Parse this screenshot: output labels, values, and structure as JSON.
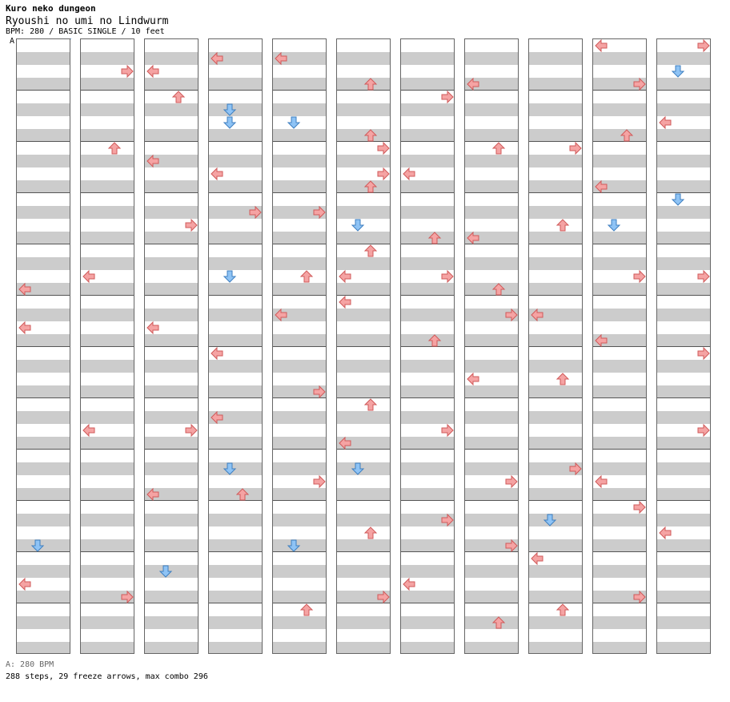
{
  "header": {
    "pack": "Kuro neko dungeon",
    "title": "Ryoushi no umi no Lindwurm",
    "info": "BPM: 280 / BASIC SINGLE / 10 feet",
    "marker": "A"
  },
  "footer": {
    "bpm": "A: 280 BPM",
    "stats": "288 steps, 29 freeze arrows, max combo 296"
  },
  "colors": {
    "left": "#f5a3a3",
    "up": "#f5a3a3",
    "down": "#8ec3f5",
    "right": "#f5a3a3",
    "freeze": "#c8f5c0"
  },
  "chart_data": {
    "type": "step-chart",
    "bpm": 280,
    "difficulty": "BASIC SINGLE",
    "rating": "10 feet",
    "columns": 11,
    "beats_per_column": 48,
    "steps": 288,
    "freeze_arrows": 29,
    "max_combo": 296,
    "notes": [
      [
        [
          19,
          "L"
        ],
        [
          22,
          "L"
        ],
        [
          39,
          "D"
        ],
        [
          42,
          "L"
        ]
      ],
      [
        [
          2,
          "R"
        ],
        [
          8,
          "U"
        ],
        [
          18,
          "L"
        ],
        [
          30,
          "L"
        ],
        [
          43,
          "R"
        ]
      ],
      [
        [
          2,
          "L"
        ],
        [
          4,
          "U"
        ],
        [
          9,
          "L"
        ],
        [
          14,
          "R"
        ],
        [
          22,
          "L"
        ],
        [
          30,
          "R"
        ],
        [
          35,
          "L"
        ],
        [
          41,
          "D"
        ]
      ],
      [
        [
          1,
          "L"
        ],
        [
          5,
          "D"
        ],
        [
          6,
          "D"
        ],
        [
          10,
          "L"
        ],
        [
          13,
          "R"
        ],
        [
          18,
          "D"
        ],
        [
          24,
          "L"
        ],
        [
          29,
          "L"
        ],
        [
          33,
          "D"
        ],
        [
          35,
          "U"
        ]
      ],
      [
        [
          1,
          "L"
        ],
        [
          6,
          "D"
        ],
        [
          13,
          "R"
        ],
        [
          18,
          "U"
        ],
        [
          21,
          "L"
        ],
        [
          27,
          "R"
        ],
        [
          34,
          "R"
        ],
        [
          39,
          "D"
        ],
        [
          44,
          "U"
        ]
      ],
      [
        [
          3,
          "U"
        ],
        [
          7,
          "U"
        ],
        [
          8,
          "R"
        ],
        [
          10,
          "R"
        ],
        [
          11,
          "U"
        ],
        [
          14,
          "D"
        ],
        [
          16,
          "U"
        ],
        [
          18,
          "L"
        ],
        [
          20,
          "L"
        ],
        [
          28,
          "U"
        ],
        [
          31,
          "L"
        ],
        [
          33,
          "D"
        ],
        [
          38,
          "U"
        ],
        [
          43,
          "R"
        ]
      ],
      [
        [
          4,
          "R"
        ],
        [
          10,
          "L"
        ],
        [
          15,
          "U"
        ],
        [
          18,
          "R"
        ],
        [
          23,
          "U"
        ],
        [
          30,
          "R"
        ],
        [
          37,
          "R"
        ],
        [
          42,
          "L"
        ]
      ],
      [
        [
          3,
          "L"
        ],
        [
          8,
          "U"
        ],
        [
          15,
          "L"
        ],
        [
          19,
          "U"
        ],
        [
          21,
          "R"
        ],
        [
          26,
          "L"
        ],
        [
          34,
          "R"
        ],
        [
          39,
          "R"
        ],
        [
          45,
          "U"
        ]
      ],
      [
        [
          8,
          "R"
        ],
        [
          14,
          "U"
        ],
        [
          21,
          "L"
        ],
        [
          26,
          "U"
        ],
        [
          33,
          "R"
        ],
        [
          37,
          "D"
        ],
        [
          40,
          "L"
        ],
        [
          44,
          "U"
        ]
      ],
      [
        [
          0,
          "L"
        ],
        [
          3,
          "R"
        ],
        [
          7,
          "U"
        ],
        [
          11,
          "L"
        ],
        [
          14,
          "D"
        ],
        [
          18,
          "R"
        ],
        [
          23,
          "L"
        ],
        [
          34,
          "L"
        ],
        [
          36,
          "R"
        ],
        [
          43,
          "R"
        ]
      ],
      [
        [
          0,
          "R"
        ],
        [
          2,
          "D"
        ],
        [
          6,
          "L"
        ],
        [
          12,
          "D"
        ],
        [
          18,
          "R"
        ],
        [
          24,
          "R"
        ],
        [
          30,
          "R"
        ],
        [
          38,
          "L"
        ]
      ]
    ]
  }
}
